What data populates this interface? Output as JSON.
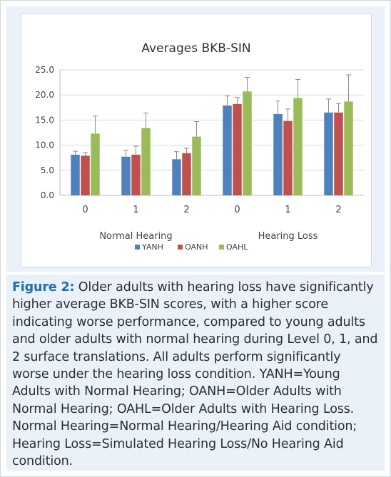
{
  "chart_data": {
    "type": "bar",
    "title": "Averages BKB-SIN",
    "groups": [
      "Normal Hearing",
      "Hearing Loss"
    ],
    "categories": [
      "0",
      "1",
      "2",
      "0",
      "1",
      "2"
    ],
    "category_group": [
      "Normal Hearing",
      "Normal Hearing",
      "Normal Hearing",
      "Hearing Loss",
      "Hearing Loss",
      "Hearing Loss"
    ],
    "series": [
      {
        "name": "YANH",
        "color": "#4f81bd",
        "values": [
          8.1,
          7.7,
          7.2,
          17.9,
          16.2,
          16.5
        ],
        "errors": [
          0.7,
          1.3,
          1.5,
          1.9,
          2.6,
          2.7
        ]
      },
      {
        "name": "OANH",
        "color": "#c0504d",
        "values": [
          7.9,
          8.1,
          8.4,
          18.2,
          14.8,
          16.5
        ],
        "errors": [
          0.6,
          1.7,
          1.0,
          1.3,
          2.4,
          1.8
        ]
      },
      {
        "name": "OAHL",
        "color": "#9bbb59",
        "values": [
          12.3,
          13.4,
          11.7,
          20.7,
          19.4,
          18.7
        ],
        "errors": [
          3.5,
          3.0,
          3.0,
          2.8,
          3.7,
          5.3
        ]
      }
    ],
    "ylim": [
      0,
      25
    ],
    "yticks": [
      "0.0",
      "5.0",
      "10.0",
      "15.0",
      "20.0",
      "25.0"
    ],
    "grid": true,
    "legend_position": "bottom",
    "xlabel": "",
    "ylabel": ""
  },
  "caption": {
    "label": "Figure 2:",
    "text": " Older adults with hearing loss have significantly higher average BKB-SIN scores, with a higher score indicating worse performance, compared to young adults and older adults with normal hearing during Level 0, 1, and 2 surface translations. All adults perform significantly worse under the hearing loss condition. YANH=Young Adults with Normal Hearing; OANH=Older Adults with Normal Hearing; OAHL=Older Adults with Hearing Loss. Normal Hearing=Normal Hearing/Hearing Aid condition; Hearing Loss=Simulated Hearing Loss/No Hearing Aid condition."
  }
}
